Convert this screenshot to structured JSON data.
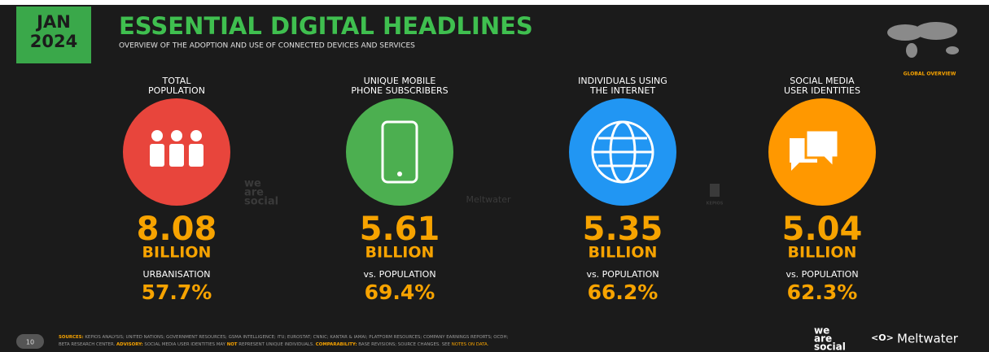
{
  "header": {
    "month": "JAN",
    "year": "2024",
    "title": "ESSENTIAL DIGITAL HEADLINES",
    "subtitle": "OVERVIEW OF THE ADOPTION AND USE OF CONNECTED DEVICES AND SERVICES",
    "badge": "GLOBAL OVERVIEW"
  },
  "items": [
    {
      "label": [
        "TOTAL",
        "POPULATION"
      ],
      "value": "8.08",
      "unit": "BILLION",
      "sub_label": "URBANISATION",
      "sub_value": "57.7%",
      "color": "#e8453c"
    },
    {
      "label": [
        "UNIQUE MOBILE",
        "PHONE SUBSCRIBERS"
      ],
      "value": "5.61",
      "unit": "BILLION",
      "sub_label": "vs. POPULATION",
      "sub_value": "69.4%",
      "color": "#4caf50"
    },
    {
      "label": [
        "INDIVIDUALS USING",
        "THE INTERNET"
      ],
      "value": "5.35",
      "unit": "BILLION",
      "sub_label": "vs. POPULATION",
      "sub_value": "66.2%",
      "color": "#2196f3"
    },
    {
      "label": [
        "SOCIAL MEDIA",
        "USER IDENTITIES"
      ],
      "value": "5.04",
      "unit": "BILLION",
      "sub_label": "vs. POPULATION",
      "sub_value": "62.3%",
      "color": "#ff9800"
    }
  ],
  "watermarks": {
    "we_are_social": [
      "we",
      "are",
      "social"
    ],
    "meltwater": "Meltwater",
    "kepios": "KEPIOS"
  },
  "footer": {
    "page": "10",
    "sources_label": "SOURCES:",
    "sources_text": "KEPIOS ANALYSIS; UNITED NATIONS; GOVERNMENT RESOURCES; GSMA INTELLIGENCE; ITU; EUROSTAT; CNNIC; KANTAR & IAMAI; PLATFORM RESOURCES; COMPANY EARNINGS REPORTS; OCDH;",
    "sources_text_2": "BETA RESEARCH CENTER.",
    "advisory_label": "ADVISORY:",
    "advisory_text": "SOCIAL MEDIA USER IDENTITIES MAY",
    "advisory_not": "NOT",
    "advisory_text_2": "REPRESENT UNIQUE INDIVIDUALS.",
    "comparability_label": "COMPARABILITY:",
    "comparability_text": "BASE REVISIONS; SOURCE CHANGES. SEE",
    "notes_link": "NOTES ON DATA.",
    "logo_we_are_social": [
      "we",
      "are",
      "social"
    ],
    "logo_meltwater": "Meltwater"
  }
}
